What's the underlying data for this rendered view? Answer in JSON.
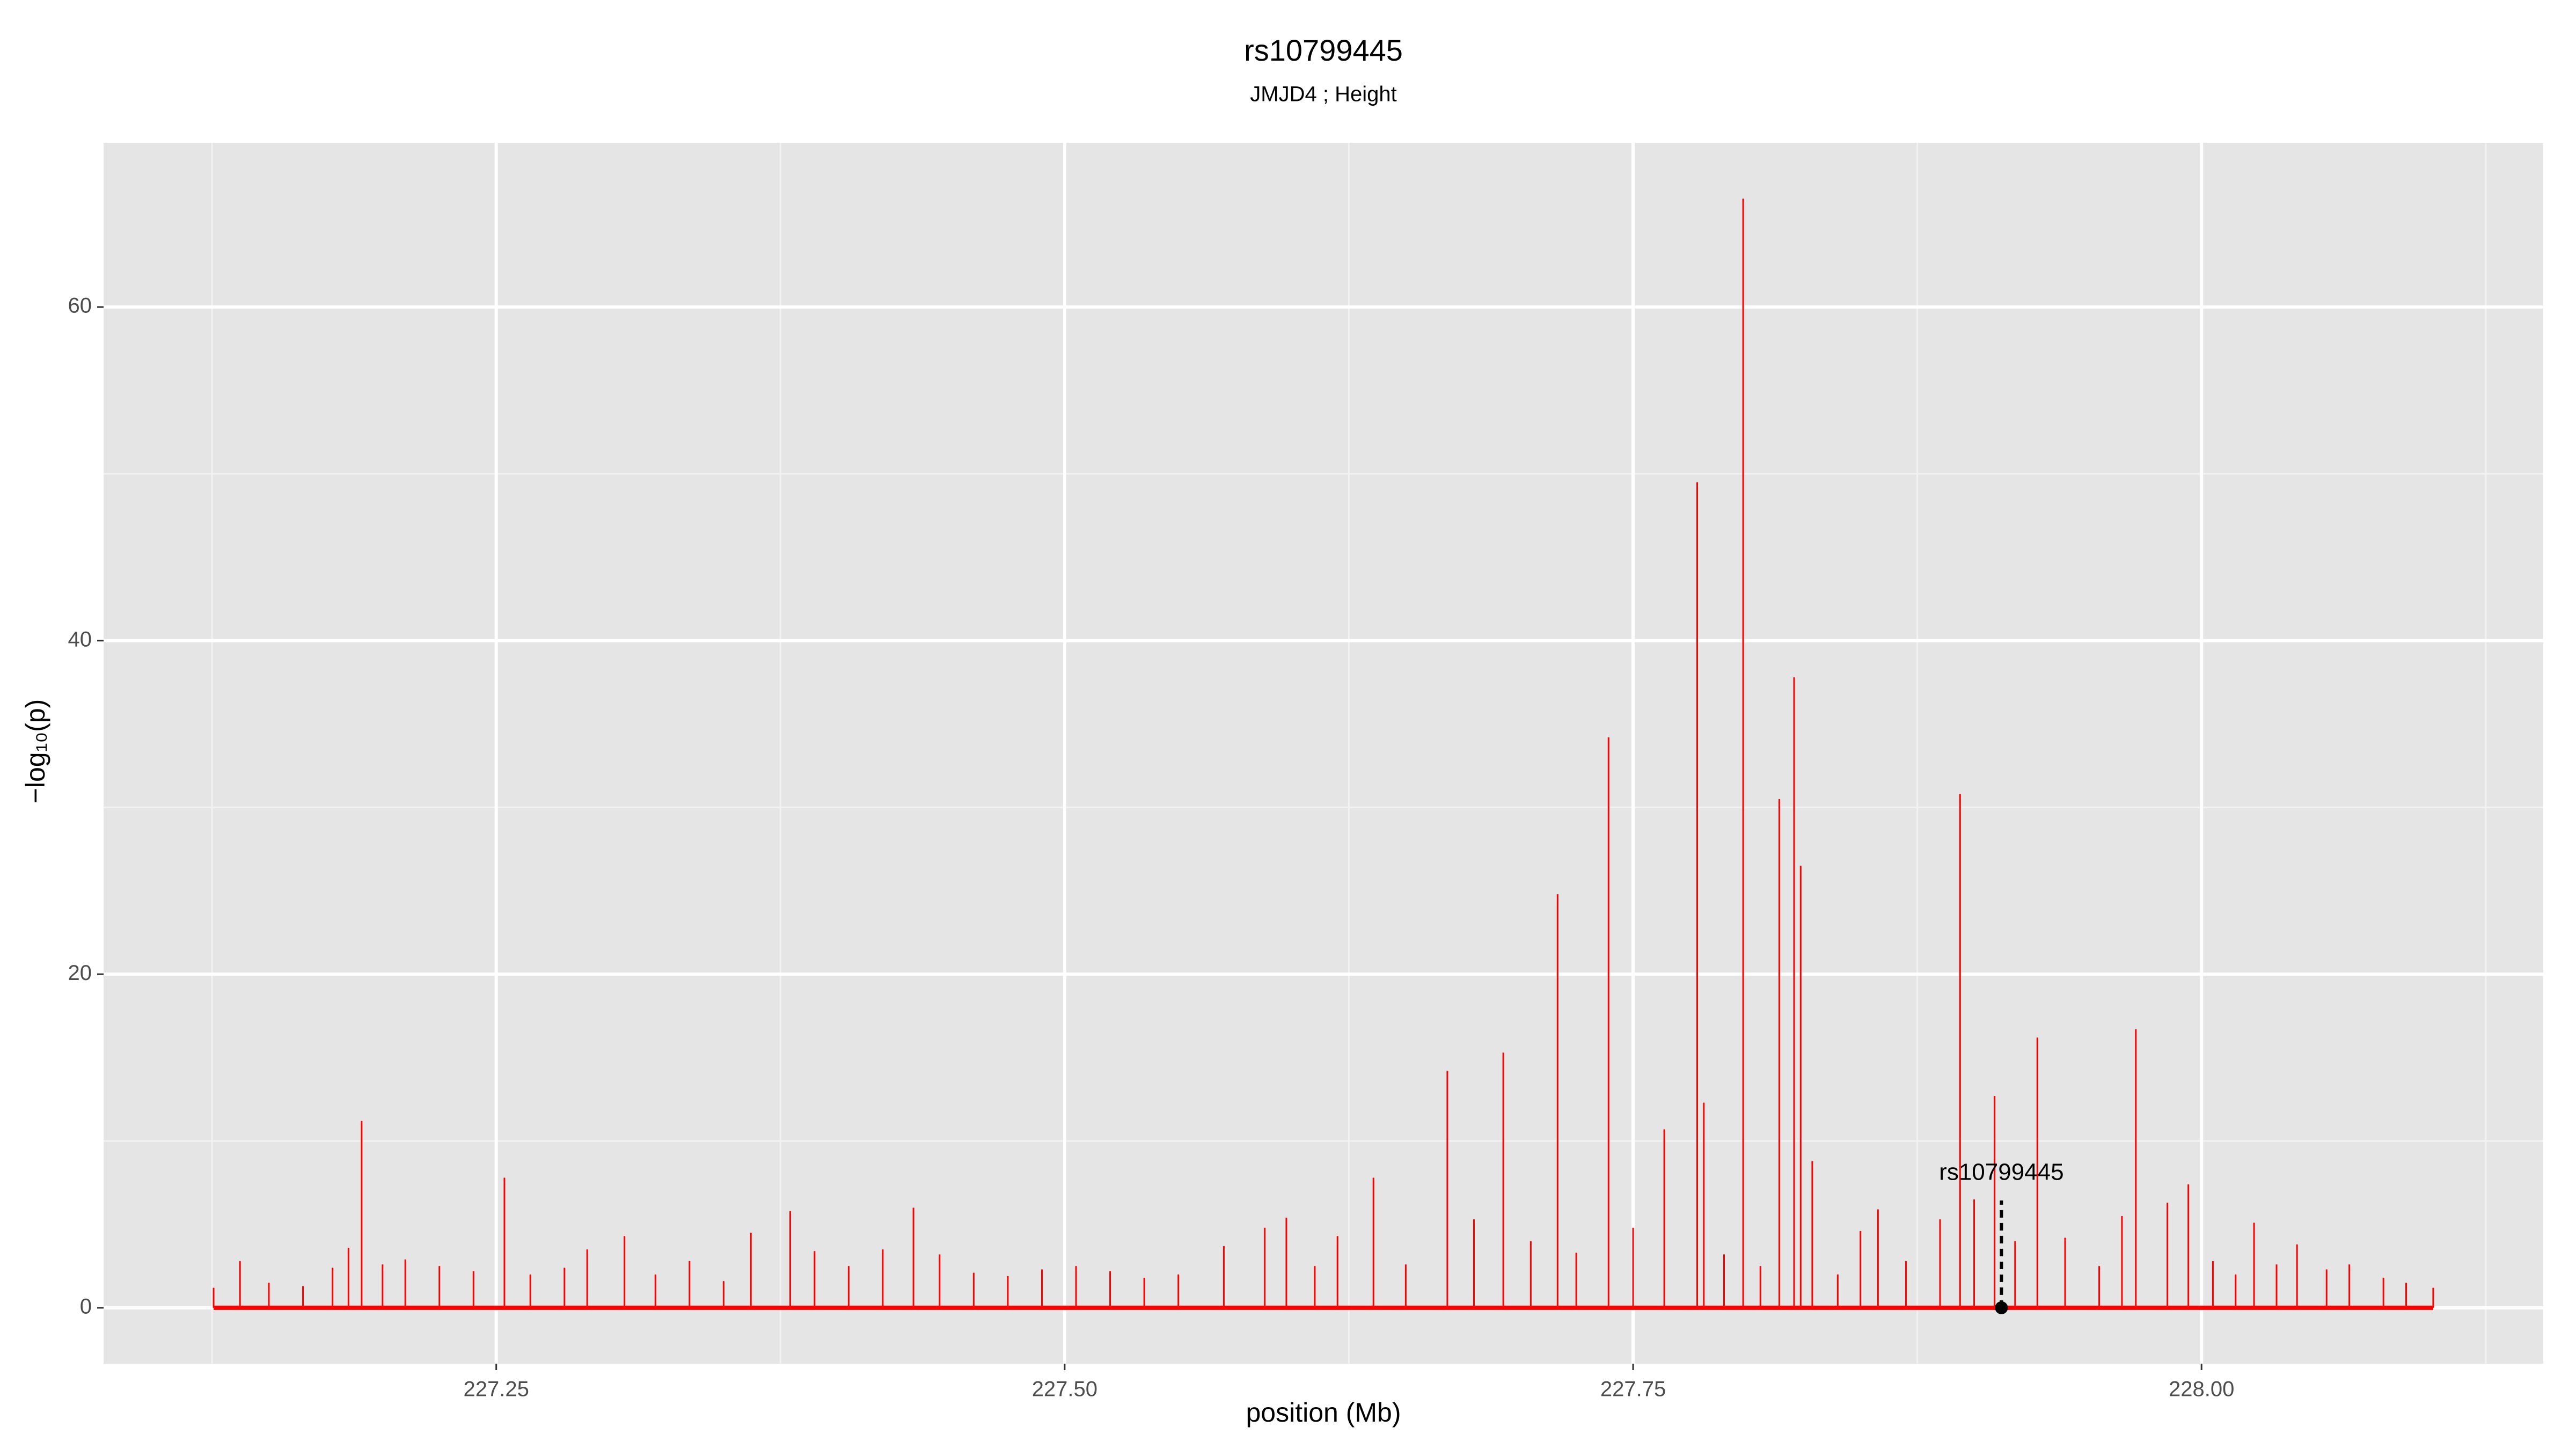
{
  "chart_data": {
    "type": "spike",
    "title": "rs10799445",
    "subtitle": "JMJD4 ; Height",
    "x_label": "position (Mb)",
    "y_label": "−log₁₀(p)",
    "color": "#ff0000",
    "grid": true,
    "xlim": [
      227.0773,
      228.1503
    ],
    "ylim": [
      -3.35,
      69.85
    ],
    "xticks": [
      {
        "value": 227.25,
        "label": "227.25"
      },
      {
        "value": 227.5,
        "label": "227.50"
      },
      {
        "value": 227.75,
        "label": "227.75"
      },
      {
        "value": 228,
        "label": "228.00"
      }
    ],
    "yticks": [
      0,
      20,
      40,
      60
    ],
    "x": [
      227.1257,
      227.1373,
      227.15,
      227.165,
      227.178,
      227.185,
      227.1908,
      227.2,
      227.21,
      227.225,
      227.24,
      227.2536,
      227.265,
      227.28,
      227.29,
      227.3064,
      227.32,
      227.335,
      227.35,
      227.362,
      227.3793,
      227.39,
      227.405,
      227.42,
      227.4335,
      227.445,
      227.46,
      227.475,
      227.49,
      227.505,
      227.52,
      227.535,
      227.55,
      227.57,
      227.588,
      227.5975,
      227.61,
      227.62,
      227.6358,
      227.65,
      227.6683,
      227.68,
      227.6929,
      227.705,
      227.7168,
      227.725,
      227.7392,
      227.75,
      227.7637,
      227.7782,
      227.7811,
      227.79,
      227.7984,
      227.806,
      227.8143,
      227.8208,
      227.8237,
      227.8288,
      227.84,
      227.85,
      227.8577,
      227.87,
      227.885,
      227.8938,
      227.9,
      227.909,
      227.918,
      227.9278,
      227.94,
      227.955,
      227.965,
      227.9711,
      227.985,
      227.9942,
      228.005,
      228.015,
      228.0231,
      228.033,
      228.042,
      228.055,
      228.065,
      228.08,
      228.09,
      228.1019
    ],
    "values": [
      1.2,
      2.8,
      1.5,
      1.3,
      2.4,
      3.6,
      11.2,
      2.6,
      2.9,
      2.5,
      2.2,
      7.8,
      2.0,
      2.4,
      3.5,
      4.3,
      2.0,
      2.8,
      1.6,
      4.5,
      5.8,
      3.4,
      2.5,
      3.5,
      6.0,
      3.2,
      2.1,
      1.9,
      2.3,
      2.5,
      2.2,
      1.8,
      2.0,
      3.7,
      4.8,
      5.4,
      2.5,
      4.3,
      7.8,
      2.6,
      14.2,
      5.3,
      15.3,
      4.0,
      24.8,
      3.3,
      34.2,
      4.8,
      10.7,
      49.5,
      12.3,
      3.2,
      66.5,
      2.5,
      30.5,
      37.8,
      26.5,
      8.8,
      2.0,
      4.6,
      5.9,
      2.8,
      5.3,
      30.8,
      6.5,
      12.7,
      4.0,
      16.2,
      4.2,
      2.5,
      5.5,
      16.7,
      6.3,
      7.4,
      2.8,
      2.0,
      5.1,
      2.6,
      3.8,
      2.3,
      2.6,
      1.8,
      1.5,
      1.2
    ],
    "highlight": {
      "label": "rs10799445",
      "x": 227.912,
      "y": 0
    }
  }
}
